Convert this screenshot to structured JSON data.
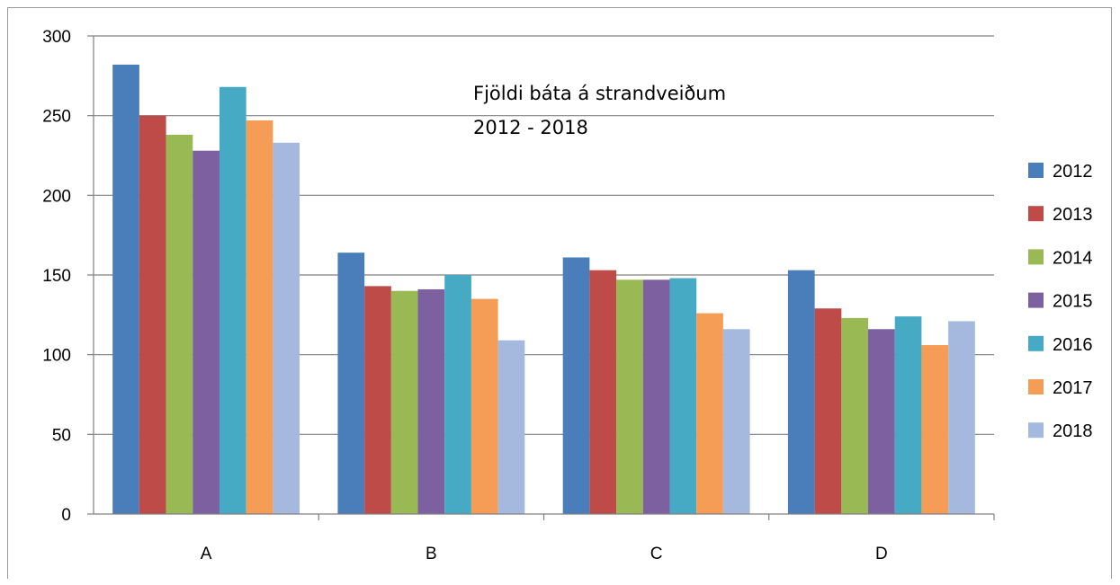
{
  "chart_data": {
    "type": "bar",
    "title_lines": [
      "Fjöldi báta á strandveiðum",
      "2012 - 2018"
    ],
    "categories": [
      "A",
      "B",
      "C",
      "D"
    ],
    "ylim": [
      0,
      300
    ],
    "yticks": [
      0,
      50,
      100,
      150,
      200,
      250,
      300
    ],
    "grid": true,
    "legend_position": "right",
    "series": [
      {
        "name": "2012",
        "color": "#4a7ebb",
        "values": [
          282,
          164,
          161,
          153
        ]
      },
      {
        "name": "2013",
        "color": "#be4b48",
        "values": [
          250,
          143,
          153,
          129
        ]
      },
      {
        "name": "2014",
        "color": "#98b954",
        "values": [
          238,
          140,
          147,
          123
        ]
      },
      {
        "name": "2015",
        "color": "#7d60a0",
        "values": [
          228,
          141,
          147,
          116
        ]
      },
      {
        "name": "2016",
        "color": "#46aac5",
        "values": [
          268,
          150,
          148,
          124
        ]
      },
      {
        "name": "2017",
        "color": "#f59d56",
        "values": [
          247,
          135,
          126,
          106
        ]
      },
      {
        "name": "2018",
        "color": "#a5b9de",
        "values": [
          233,
          109,
          116,
          121
        ]
      }
    ]
  }
}
